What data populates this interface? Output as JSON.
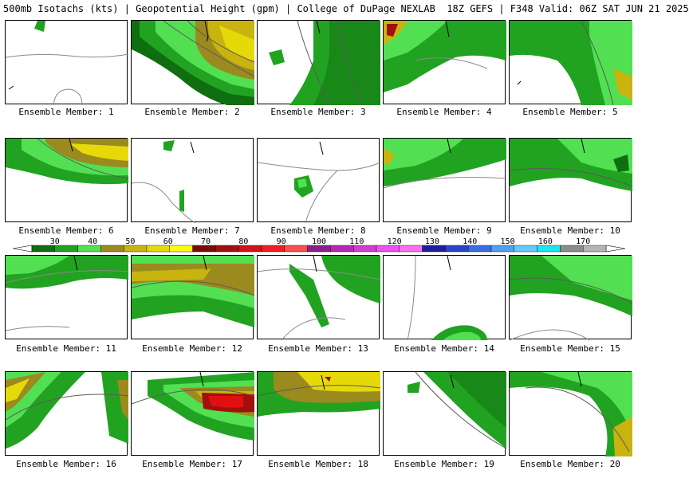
{
  "header": {
    "title": "500mb Isotachs (kts) | Geopotential Height (gpm) | College of DuPage NEXLAB",
    "run": "18Z GEFS | F348 Valid: 06Z SAT JUN 21 2025"
  },
  "legend": {
    "labels": [
      "30",
      "40",
      "50",
      "60",
      "70",
      "80",
      "90",
      "100",
      "110",
      "120",
      "130",
      "140",
      "150",
      "160",
      "170"
    ],
    "colors": [
      "#0f6e0f",
      "#21a321",
      "#52e052",
      "#9b8a1e",
      "#c9b40f",
      "#e6d90a",
      "#fafa14",
      "#7a0a0a",
      "#a30f0f",
      "#d21414",
      "#f01e1e",
      "#fa4d4d",
      "#8c1e8c",
      "#b428b4",
      "#d23cd2",
      "#f050f0",
      "#fa6ef0",
      "#1e1ea0",
      "#2846c8",
      "#3c6ee6",
      "#50a0f0",
      "#64c8fa",
      "#1ee6f0",
      "#8c8c8c",
      "#b4b4b4"
    ]
  },
  "colors": {
    "green_dark": "#0f6e0f",
    "green_mid": "#21a321",
    "green_light": "#52e052",
    "olive": "#9b8a1e",
    "gold": "#c9b40f",
    "yellow": "#fafa14",
    "red_dark": "#a30f0f",
    "red": "#e01010",
    "contour": "#8a8a8a",
    "coast": "#000000"
  },
  "members": [
    {
      "label": "Ensemble Member: 1"
    },
    {
      "label": "Ensemble Member: 2"
    },
    {
      "label": "Ensemble Member: 3"
    },
    {
      "label": "Ensemble Member: 4"
    },
    {
      "label": "Ensemble Member: 5"
    },
    {
      "label": "Ensemble Member: 6"
    },
    {
      "label": "Ensemble Member: 7"
    },
    {
      "label": "Ensemble Member: 8"
    },
    {
      "label": "Ensemble Member: 9"
    },
    {
      "label": "Ensemble Member: 10"
    },
    {
      "label": "Ensemble Member: 11"
    },
    {
      "label": "Ensemble Member: 12"
    },
    {
      "label": "Ensemble Member: 13"
    },
    {
      "label": "Ensemble Member: 14"
    },
    {
      "label": "Ensemble Member: 15"
    },
    {
      "label": "Ensemble Member: 16"
    },
    {
      "label": "Ensemble Member: 17"
    },
    {
      "label": "Ensemble Member: 18"
    },
    {
      "label": "Ensemble Member: 19"
    },
    {
      "label": "Ensemble Member: 20"
    }
  ]
}
